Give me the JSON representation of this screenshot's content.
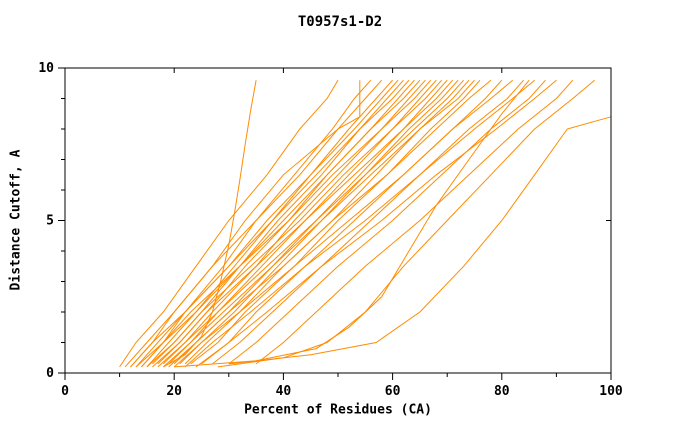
{
  "page": {
    "background": "#ffffff",
    "text_color": "#000000"
  },
  "chart_data": {
    "type": "line",
    "title": "T0957s1-D2",
    "xlabel": "Percent of Residues (CA)",
    "ylabel": "Distance Cutoff, A",
    "xlim": [
      0,
      100
    ],
    "ylim": [
      0,
      10
    ],
    "xticks": [
      0,
      20,
      40,
      60,
      80,
      100
    ],
    "yticks": [
      0,
      5,
      10
    ],
    "x_minor_ticks": [
      10,
      30,
      50,
      70,
      90
    ],
    "y_minor_ticks": [
      1,
      2,
      3,
      4,
      6,
      7,
      8,
      9
    ],
    "grid": false,
    "legend": "none",
    "line_color": "#ff8c00",
    "frame_color": "#000000",
    "series": [
      [
        [
          18,
          0.2
        ],
        [
          22,
          0.6
        ],
        [
          25,
          1.2
        ],
        [
          27,
          2
        ],
        [
          28.5,
          3
        ],
        [
          30,
          4.2
        ],
        [
          31,
          5.2
        ],
        [
          32,
          6.3
        ],
        [
          33,
          7.5
        ],
        [
          34,
          8.6
        ],
        [
          35,
          9.6
        ]
      ],
      [
        [
          10,
          0.2
        ],
        [
          13,
          1
        ],
        [
          18,
          2
        ],
        [
          24,
          3.5
        ],
        [
          30,
          5
        ],
        [
          37,
          6.5
        ],
        [
          43,
          8
        ],
        [
          48,
          9
        ],
        [
          50,
          9.6
        ]
      ],
      [
        [
          12,
          0.2
        ],
        [
          16,
          1
        ],
        [
          20,
          2
        ],
        [
          27,
          3.5
        ],
        [
          33,
          5
        ],
        [
          40,
          6.5
        ],
        [
          50,
          8
        ],
        [
          54,
          8.4
        ],
        [
          54,
          9.6
        ]
      ],
      [
        [
          14,
          0.2
        ],
        [
          18,
          1
        ],
        [
          22,
          2
        ],
        [
          29,
          3.5
        ],
        [
          35,
          5
        ],
        [
          42,
          6.5
        ],
        [
          49,
          8
        ],
        [
          53,
          9
        ],
        [
          56,
          9.6
        ]
      ],
      [
        [
          11,
          0.2
        ],
        [
          15,
          1
        ],
        [
          20,
          2
        ],
        [
          27,
          3.5
        ],
        [
          35,
          5
        ],
        [
          43,
          6.5
        ],
        [
          50,
          8
        ],
        [
          55,
          9
        ],
        [
          58,
          9.6
        ]
      ],
      [
        [
          15,
          0.2
        ],
        [
          19,
          1
        ],
        [
          24,
          2
        ],
        [
          31,
          3.5
        ],
        [
          38,
          5
        ],
        [
          45,
          6.5
        ],
        [
          52,
          8
        ],
        [
          57,
          9
        ],
        [
          60,
          9.6
        ]
      ],
      [
        [
          13,
          0.2
        ],
        [
          17,
          1
        ],
        [
          22,
          2
        ],
        [
          30,
          3.5
        ],
        [
          37,
          5
        ],
        [
          45,
          6.5
        ],
        [
          53,
          8
        ],
        [
          58,
          9
        ],
        [
          61,
          9.6
        ]
      ],
      [
        [
          16,
          0.3
        ],
        [
          20,
          1
        ],
        [
          25,
          2
        ],
        [
          32,
          3.5
        ],
        [
          39,
          5
        ],
        [
          47,
          6.5
        ],
        [
          54,
          8
        ],
        [
          59,
          9
        ],
        [
          62,
          9.6
        ]
      ],
      [
        [
          12,
          0.2
        ],
        [
          16,
          1
        ],
        [
          22,
          2
        ],
        [
          30,
          3.5
        ],
        [
          38,
          5
        ],
        [
          46,
          6.5
        ],
        [
          54,
          8
        ],
        [
          60,
          9
        ],
        [
          63,
          9.6
        ]
      ],
      [
        [
          17,
          0.3
        ],
        [
          21,
          1
        ],
        [
          26,
          2
        ],
        [
          33,
          3.5
        ],
        [
          41,
          5
        ],
        [
          48,
          6.5
        ],
        [
          56,
          8
        ],
        [
          61,
          9
        ],
        [
          64,
          9.6
        ]
      ],
      [
        [
          14,
          0.2
        ],
        [
          18,
          1
        ],
        [
          24,
          2
        ],
        [
          32,
          3.5
        ],
        [
          40,
          5
        ],
        [
          48,
          6.5
        ],
        [
          56,
          8
        ],
        [
          62,
          9
        ],
        [
          65,
          9.6
        ]
      ],
      [
        [
          18,
          0.3
        ],
        [
          22,
          1
        ],
        [
          27,
          2
        ],
        [
          35,
          3.5
        ],
        [
          42,
          5
        ],
        [
          50,
          6.5
        ],
        [
          58,
          8
        ],
        [
          63,
          9
        ],
        [
          66,
          9.6
        ]
      ],
      [
        [
          13,
          0.2
        ],
        [
          18,
          1
        ],
        [
          23,
          2
        ],
        [
          32,
          3.5
        ],
        [
          41,
          5
        ],
        [
          49,
          6.5
        ],
        [
          58,
          8
        ],
        [
          64,
          9
        ],
        [
          67,
          9.6
        ]
      ],
      [
        [
          19,
          0.3
        ],
        [
          23,
          1
        ],
        [
          28,
          2
        ],
        [
          36,
          3.5
        ],
        [
          44,
          5
        ],
        [
          52,
          6.5
        ],
        [
          60,
          8
        ],
        [
          65,
          9
        ],
        [
          68,
          9.6
        ]
      ],
      [
        [
          15,
          0.2
        ],
        [
          20,
          1
        ],
        [
          25,
          2
        ],
        [
          34,
          3.5
        ],
        [
          43,
          5
        ],
        [
          51,
          6.5
        ],
        [
          60,
          8
        ],
        [
          66,
          9
        ],
        [
          69,
          9.6
        ]
      ],
      [
        [
          20,
          0.3
        ],
        [
          24,
          1
        ],
        [
          30,
          2
        ],
        [
          38,
          3.5
        ],
        [
          46,
          5
        ],
        [
          54,
          6.5
        ],
        [
          62,
          8
        ],
        [
          67,
          9
        ],
        [
          70,
          9.6
        ]
      ],
      [
        [
          16,
          0.2
        ],
        [
          21,
          1
        ],
        [
          26,
          2
        ],
        [
          35,
          3.5
        ],
        [
          44,
          5
        ],
        [
          53,
          6.5
        ],
        [
          62,
          8
        ],
        [
          68,
          9
        ],
        [
          71,
          9.6
        ]
      ],
      [
        [
          21,
          0.3
        ],
        [
          25,
          1
        ],
        [
          31,
          2
        ],
        [
          39,
          3.5
        ],
        [
          47,
          5
        ],
        [
          55,
          6.5
        ],
        [
          63,
          8
        ],
        [
          69,
          9
        ],
        [
          72,
          9.6
        ]
      ],
      [
        [
          17,
          0.2
        ],
        [
          22,
          1
        ],
        [
          28,
          2
        ],
        [
          37,
          3.5
        ],
        [
          46,
          5
        ],
        [
          55,
          6.5
        ],
        [
          64,
          8
        ],
        [
          70,
          9
        ],
        [
          73,
          9.6
        ]
      ],
      [
        [
          22,
          0.3
        ],
        [
          26,
          1
        ],
        [
          32,
          2
        ],
        [
          40,
          3.5
        ],
        [
          49,
          5
        ],
        [
          57,
          6.5
        ],
        [
          65,
          8
        ],
        [
          71,
          9
        ],
        [
          74,
          9.6
        ]
      ],
      [
        [
          18,
          0.2
        ],
        [
          23,
          1
        ],
        [
          29,
          2
        ],
        [
          38,
          3.5
        ],
        [
          47,
          5
        ],
        [
          56,
          6.5
        ],
        [
          65,
          8
        ],
        [
          72,
          9
        ],
        [
          75,
          9.6
        ]
      ],
      [
        [
          23,
          0.3
        ],
        [
          28,
          1
        ],
        [
          33,
          2
        ],
        [
          42,
          3.5
        ],
        [
          50,
          5
        ],
        [
          59,
          6.5
        ],
        [
          67,
          8
        ],
        [
          73,
          9
        ],
        [
          76,
          9.6
        ]
      ],
      [
        [
          19,
          0.2
        ],
        [
          24,
          1
        ],
        [
          30,
          2
        ],
        [
          40,
          3.5
        ],
        [
          49,
          5
        ],
        [
          59,
          6.5
        ],
        [
          68,
          8
        ],
        [
          74,
          9
        ],
        [
          78,
          9.6
        ]
      ],
      [
        [
          25,
          0.3
        ],
        [
          30,
          1
        ],
        [
          35,
          2
        ],
        [
          44,
          3.5
        ],
        [
          53,
          5
        ],
        [
          62,
          6.5
        ],
        [
          71,
          8
        ],
        [
          77,
          9
        ],
        [
          80,
          9.6
        ]
      ],
      [
        [
          20,
          0.2
        ],
        [
          25,
          1
        ],
        [
          32,
          2
        ],
        [
          42,
          3.5
        ],
        [
          52,
          5
        ],
        [
          62,
          6.5
        ],
        [
          71,
          8
        ],
        [
          78,
          9
        ],
        [
          82,
          9.6
        ]
      ],
      [
        [
          27,
          0.3
        ],
        [
          32,
          1
        ],
        [
          38,
          2
        ],
        [
          47,
          3.5
        ],
        [
          56,
          5
        ],
        [
          65,
          6.5
        ],
        [
          74,
          8
        ],
        [
          81,
          9
        ],
        [
          84,
          9.6
        ]
      ],
      [
        [
          22,
          0.2
        ],
        [
          27,
          1
        ],
        [
          34,
          2
        ],
        [
          44,
          3.5
        ],
        [
          55,
          5
        ],
        [
          65,
          6.5
        ],
        [
          75,
          8
        ],
        [
          82,
          9
        ],
        [
          86,
          9.6
        ]
      ],
      [
        [
          30,
          0.3
        ],
        [
          35,
          1
        ],
        [
          41,
          2
        ],
        [
          50,
          3.5
        ],
        [
          60,
          5
        ],
        [
          69,
          6.5
        ],
        [
          78,
          8
        ],
        [
          85,
          9
        ],
        [
          88,
          9.6
        ]
      ],
      [
        [
          24,
          0.2
        ],
        [
          30,
          1
        ],
        [
          37,
          2
        ],
        [
          47,
          3.5
        ],
        [
          58,
          5
        ],
        [
          68,
          6.5
        ],
        [
          79,
          8
        ],
        [
          86,
          9
        ],
        [
          90,
          9.6
        ]
      ],
      [
        [
          35,
          0.3
        ],
        [
          40,
          1
        ],
        [
          46,
          2
        ],
        [
          55,
          3.5
        ],
        [
          65,
          5
        ],
        [
          74,
          6.5
        ],
        [
          83,
          8
        ],
        [
          90,
          9
        ],
        [
          93,
          9.6
        ]
      ],
      [
        [
          28,
          0.2
        ],
        [
          40,
          0.5
        ],
        [
          48,
          1
        ],
        [
          55,
          2
        ],
        [
          62,
          3.5
        ],
        [
          70,
          5
        ],
        [
          78,
          6.5
        ],
        [
          86,
          8
        ],
        [
          93,
          9
        ],
        [
          97,
          9.6
        ]
      ],
      [
        [
          30,
          0.3
        ],
        [
          45,
          0.6
        ],
        [
          57,
          1
        ],
        [
          65,
          2
        ],
        [
          73,
          3.5
        ],
        [
          80,
          5
        ],
        [
          86,
          6.5
        ],
        [
          92,
          8
        ],
        [
          100,
          8.4
        ],
        [
          100,
          9.6
        ]
      ],
      [
        [
          20,
          0.2
        ],
        [
          35,
          0.4
        ],
        [
          46,
          0.8
        ],
        [
          52,
          1.5
        ],
        [
          58,
          2.5
        ],
        [
          63,
          4
        ],
        [
          68,
          5.5
        ],
        [
          74,
          7
        ],
        [
          80,
          8.5
        ],
        [
          85,
          9.6
        ]
      ]
    ]
  }
}
